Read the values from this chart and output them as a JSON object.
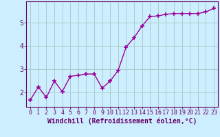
{
  "x": [
    0,
    1,
    2,
    3,
    4,
    5,
    6,
    7,
    8,
    9,
    10,
    11,
    12,
    13,
    14,
    15,
    16,
    17,
    18,
    19,
    20,
    21,
    22,
    23
  ],
  "y": [
    1.7,
    2.25,
    1.8,
    2.5,
    2.05,
    2.7,
    2.75,
    2.8,
    2.8,
    2.2,
    2.5,
    2.95,
    3.95,
    4.35,
    4.85,
    5.25,
    5.28,
    5.35,
    5.38,
    5.38,
    5.38,
    5.38,
    5.45,
    5.6
  ],
  "line_color": "#990099",
  "marker": "+",
  "marker_size": 4,
  "marker_lw": 1.2,
  "bg_color": "#cceeff",
  "grid_color": "#aacccc",
  "xlabel": "Windchill (Refroidissement éolien,°C)",
  "xlabel_fontsize": 7,
  "ylabel_ticks": [
    2,
    3,
    4,
    5
  ],
  "xtick_labels": [
    "0",
    "1",
    "2",
    "3",
    "4",
    "5",
    "6",
    "7",
    "8",
    "9",
    "10",
    "11",
    "12",
    "13",
    "14",
    "15",
    "16",
    "17",
    "18",
    "19",
    "20",
    "21",
    "22",
    "23"
  ],
  "xlim": [
    -0.5,
    23.5
  ],
  "ylim": [
    1.4,
    5.9
  ],
  "tick_fontsize": 6,
  "axis_color": "#660066",
  "spine_color": "#660066",
  "line_width": 1.0
}
